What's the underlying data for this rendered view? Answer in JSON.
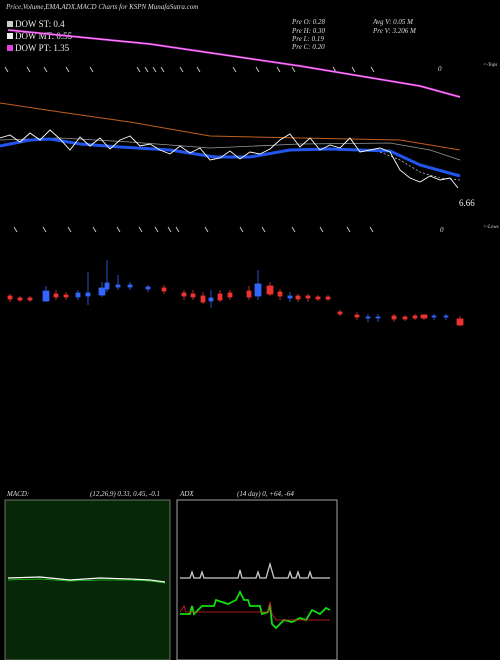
{
  "header": {
    "title": "Price,Volume,EMA,ADX,MACD Charts for KSPN MunafaSutra.com"
  },
  "legend": [
    "DOW ST: 0.4",
    "DOW MT: 0.55",
    "DOW PT: 1.35"
  ],
  "stats": [
    "Pre  O: 0.28",
    "Pre  H: 0.30",
    "Pre  L: 0.19",
    "Pre  C: 0.20",
    "Avg V: 0.05  M",
    "Pre  V: 3.206  M"
  ],
  "price_panel": {
    "last_price": "6.66",
    "tops_label": "<-Tops",
    "lows_label": "<-Lows",
    "tops_zero": "0",
    "lows_zero": "0"
  },
  "macd": {
    "label": "MACD:",
    "params": "(12,26,9) 0.33, 0.45, -0.1"
  },
  "adx": {
    "label": "ADX",
    "params": "(14  day) 0, +64, -64"
  }
}
